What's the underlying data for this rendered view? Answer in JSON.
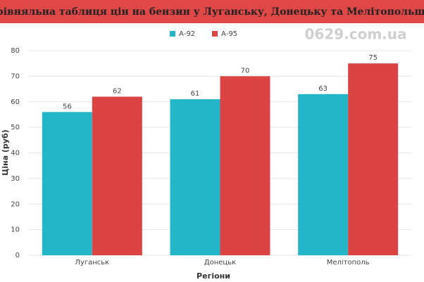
{
  "chart_data": {
    "type": "bar",
    "title": "Порівняльна таблиця цін на бензин у Луганську, Донецьку та Мелітопольщині",
    "x_label": "Регіони",
    "y_label": "Ціна (руб)",
    "watermark": "0629.com.ua",
    "categories": [
      "Луганськ",
      "Донецьк",
      "Мелітополь"
    ],
    "series": [
      {
        "name": "А-92",
        "color": "#23b6c9",
        "values": [
          56,
          61,
          63
        ]
      },
      {
        "name": "А-95",
        "color": "#dc4444",
        "values": [
          62,
          70,
          75
        ]
      }
    ],
    "ylim": [
      0,
      80
    ],
    "yticks": [
      0,
      10,
      20,
      30,
      40,
      50,
      60,
      70,
      80
    ],
    "grid": true
  }
}
